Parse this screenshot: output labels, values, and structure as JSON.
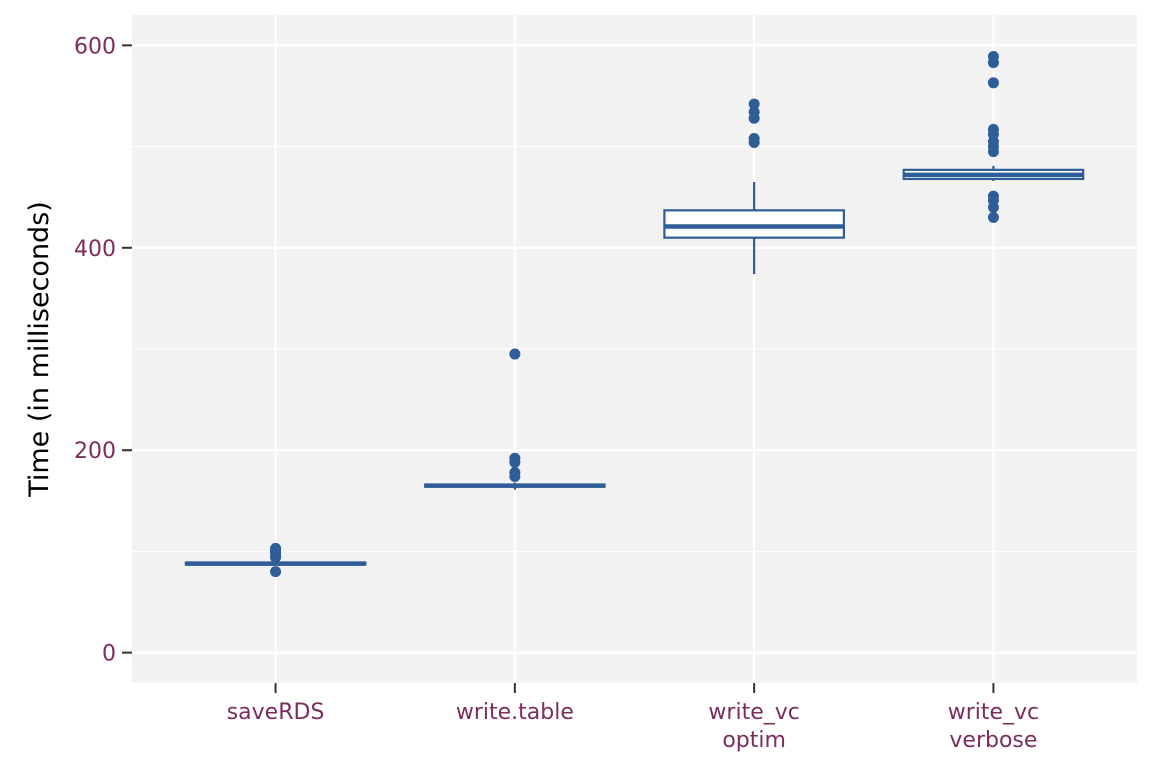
{
  "chart_data": {
    "type": "boxplot",
    "title": "",
    "xlabel": "",
    "ylabel": "Time (in milliseconds)",
    "ylim": [
      -30,
      630
    ],
    "y_ticks": [
      0,
      200,
      400,
      600
    ],
    "y_tick_labels": [
      "0",
      "200",
      "400",
      "600"
    ],
    "grid": true,
    "legend": "none",
    "colors": {
      "panel": "#f2f2f2",
      "grid": "#ffffff",
      "box": "#2f5d98",
      "tick_label": "#7b2d5e",
      "axis_title": "#000000"
    },
    "categories": [
      {
        "label_lines": [
          "saveRDS"
        ],
        "min": 86,
        "q1": 87,
        "median": 88,
        "q3": 89,
        "max": 90,
        "outliers": [
          80,
          94,
          97,
          99,
          101,
          103
        ]
      },
      {
        "label_lines": [
          "write.table"
        ],
        "min": 161,
        "q1": 164,
        "median": 165,
        "q3": 166,
        "max": 168,
        "outliers": [
          174,
          178,
          188,
          192,
          295
        ]
      },
      {
        "label_lines": [
          "write_vc",
          "optim"
        ],
        "min": 374,
        "q1": 410,
        "median": 421,
        "q3": 437,
        "max": 465,
        "outliers": [
          504,
          508,
          528,
          534,
          542
        ]
      },
      {
        "label_lines": [
          "write_vc",
          "verbose"
        ],
        "min": 466,
        "q1": 468,
        "median": 472,
        "q3": 477,
        "max": 481,
        "outliers": [
          430,
          440,
          447,
          451,
          495,
          500,
          505,
          512,
          517,
          563,
          583,
          589
        ]
      }
    ]
  }
}
